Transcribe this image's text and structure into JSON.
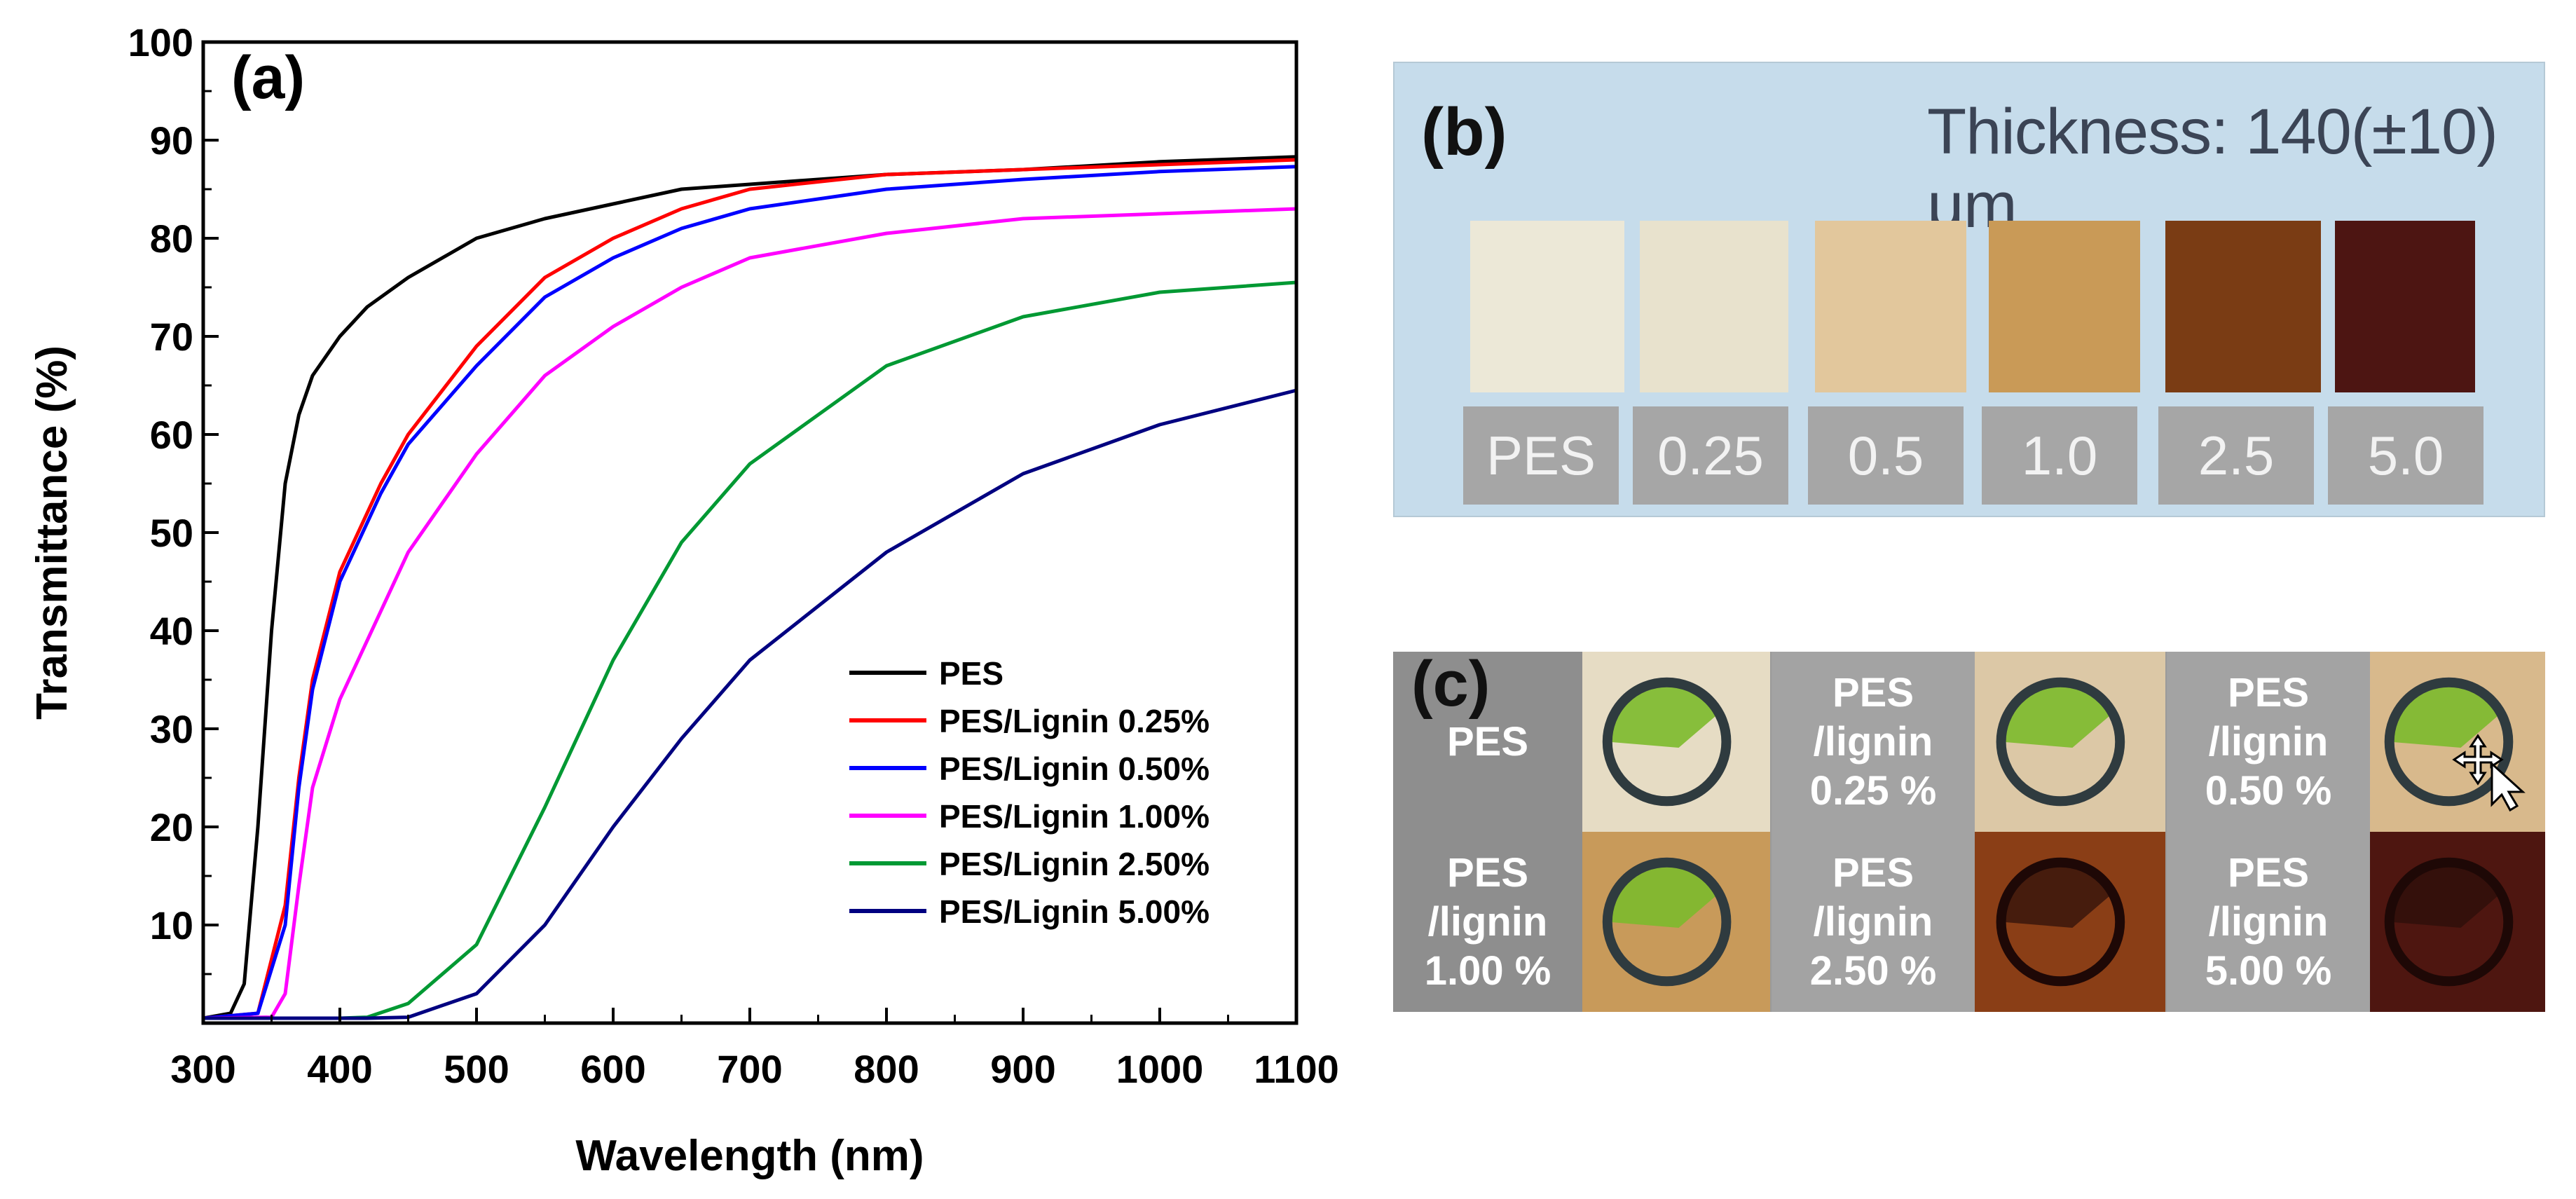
{
  "chart_data": {
    "type": "line",
    "panel_letter": "(a)",
    "xlabel": "Wavelength (nm)",
    "ylabel": "Transmittance (%)",
    "xlim": [
      300,
      1100
    ],
    "ylim": [
      0,
      100
    ],
    "x_ticks": [
      "300",
      "400",
      "500",
      "600",
      "700",
      "800",
      "900",
      "1000",
      "1100"
    ],
    "y_ticks": [
      "10",
      "20",
      "30",
      "40",
      "50",
      "60",
      "70",
      "80",
      "90",
      "100"
    ],
    "x_tick_values": [
      300,
      400,
      500,
      600,
      700,
      800,
      900,
      1000,
      1100
    ],
    "y_tick_values": [
      10,
      20,
      30,
      40,
      50,
      60,
      70,
      80,
      90,
      100
    ],
    "grid": false,
    "legend_position": "bottom-right",
    "series": [
      {
        "name": "PES",
        "color": "#000000",
        "x": [
          300,
          320,
          330,
          340,
          350,
          360,
          370,
          380,
          400,
          420,
          450,
          500,
          550,
          600,
          650,
          700,
          800,
          900,
          1000,
          1100
        ],
        "y": [
          0.5,
          1,
          4,
          20,
          40,
          55,
          62,
          66,
          70,
          73,
          76,
          80,
          82,
          83.5,
          85,
          85.5,
          86.5,
          87,
          87.8,
          88.3
        ]
      },
      {
        "name": "PES/Lignin 0.25%",
        "color": "#ff0000",
        "x": [
          300,
          340,
          360,
          370,
          380,
          400,
          430,
          450,
          500,
          550,
          600,
          650,
          700,
          800,
          900,
          1000,
          1100
        ],
        "y": [
          0.5,
          1,
          12,
          25,
          35,
          46,
          55,
          60,
          69,
          76,
          80,
          83,
          85,
          86.5,
          87,
          87.5,
          88
        ]
      },
      {
        "name": "PES/Lignin 0.50%",
        "color": "#0000ff",
        "x": [
          300,
          340,
          360,
          370,
          380,
          400,
          430,
          450,
          500,
          550,
          600,
          650,
          700,
          800,
          900,
          1000,
          1100
        ],
        "y": [
          0.5,
          1,
          10,
          24,
          34,
          45,
          54,
          59,
          67,
          74,
          78,
          81,
          83,
          85,
          86,
          86.8,
          87.3
        ]
      },
      {
        "name": "PES/Lignin 1.00%",
        "color": "#ff00ff",
        "x": [
          300,
          350,
          360,
          370,
          380,
          400,
          450,
          500,
          550,
          600,
          650,
          700,
          800,
          900,
          1000,
          1100
        ],
        "y": [
          0.5,
          0.6,
          3,
          14,
          24,
          33,
          48,
          58,
          66,
          71,
          75,
          78,
          80.5,
          82,
          82.5,
          83
        ]
      },
      {
        "name": "PES/Lignin 2.50%",
        "color": "#009933",
        "x": [
          300,
          400,
          420,
          450,
          500,
          550,
          600,
          650,
          700,
          800,
          900,
          1000,
          1100
        ],
        "y": [
          0.5,
          0.5,
          0.6,
          2,
          8,
          22,
          37,
          49,
          57,
          67,
          72,
          74.5,
          75.5
        ]
      },
      {
        "name": "PES/Lignin 5.00%",
        "color": "#000080",
        "x": [
          300,
          420,
          450,
          500,
          550,
          600,
          650,
          700,
          800,
          900,
          1000,
          1100
        ],
        "y": [
          0.5,
          0.5,
          0.6,
          3,
          10,
          20,
          29,
          37,
          48,
          56,
          61,
          64.5
        ]
      }
    ]
  },
  "panel_b": {
    "letter": "(b)",
    "thickness_label": "Thickness: 140(±10) μm",
    "films": [
      {
        "label": "PES",
        "color": "#ece8d7"
      },
      {
        "label": "0.25",
        "color": "#e8e2cd"
      },
      {
        "label": "0.5",
        "color": "#e2c79c"
      },
      {
        "label": "1.0",
        "color": "#c99a57"
      },
      {
        "label": "2.5",
        "color": "#7a3c14"
      },
      {
        "label": "5.0",
        "color": "#4d1512"
      }
    ]
  },
  "panel_c": {
    "letter": "(c)",
    "labels": [
      {
        "line1": "PES",
        "line2": "",
        "line3": ""
      },
      {
        "line1": "PES",
        "line2": "/lignin",
        "line3": "0.25 %"
      },
      {
        "line1": "PES",
        "line2": "/lignin",
        "line3": "0.50 %"
      },
      {
        "line1": "PES",
        "line2": "/lignin",
        "line3": "1.00 %"
      },
      {
        "line1": "PES",
        "line2": "/lignin",
        "line3": "2.50 %"
      },
      {
        "line1": "PES",
        "line2": "/lignin",
        "line3": "5.00 %"
      }
    ],
    "photo_colors": [
      "#e6dcc4",
      "#dcc8a6",
      "#d8b98c",
      "#c89a5a",
      "#8a3e16",
      "#4e1610"
    ]
  }
}
